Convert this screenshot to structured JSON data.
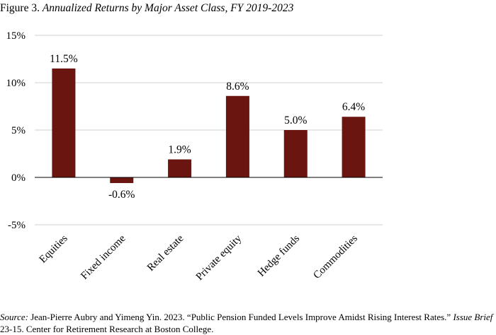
{
  "figure": {
    "label": "Figure 3.",
    "title": "Annualized Returns by Major Asset Class, FY 2019-2023"
  },
  "source": {
    "label": "Source:",
    "text1": "Jean-Pierre Aubry and Yimeng Yin. 2023. “Public Pension Funded Levels Improve Amidst Rising Interest Rates.”",
    "brief": "Issue Brief",
    "text2": "23-15. Center for Retirement Research at Boston College."
  },
  "colors": {
    "bar": "#6b1510",
    "grid": "#d0d0d0",
    "axis": "#000000"
  },
  "chart_data": {
    "type": "bar",
    "title": "Annualized Returns by Major Asset Class, FY 2019-2023",
    "categories": [
      "Equities",
      "Fixed income",
      "Real estate",
      "Private equity",
      "Hedge funds",
      "Commodities"
    ],
    "values": [
      11.5,
      -0.6,
      1.9,
      8.6,
      5.0,
      6.4
    ],
    "data_labels": [
      "11.5%",
      "-0.6%",
      "1.9%",
      "8.6%",
      "5.0%",
      "6.4%"
    ],
    "ylim": [
      -5,
      15
    ],
    "yticks": [
      15,
      10,
      5,
      0,
      -5
    ],
    "ytick_labels": [
      "15%",
      "10%",
      "5%",
      "0%",
      "-5%"
    ],
    "xlabel": "",
    "ylabel": "",
    "grid": true,
    "legend": "none"
  }
}
